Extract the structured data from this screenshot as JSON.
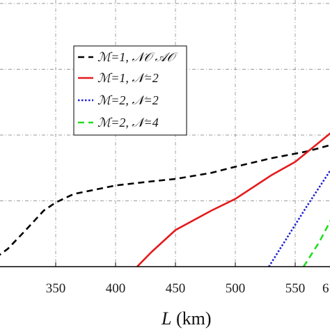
{
  "chart_data": {
    "type": "line",
    "xlabel_var": "L",
    "xlabel_unit": "(km)",
    "ylabel": "",
    "xlim": [
      300,
      600
    ],
    "x_ticks": [
      350,
      400,
      450,
      500,
      550
    ],
    "x_tick_partial": "6",
    "grid": true,
    "legend_position": "upper-left",
    "series": [
      {
        "name": "ℳ=1, 𝒩𝒪 𝒜𝒪",
        "color": "#000000",
        "style": "dashed",
        "points": [
          [
            300,
            0.37
          ],
          [
            310,
            0.73
          ],
          [
            325,
            1.5
          ],
          [
            340,
            2.3
          ],
          [
            350,
            2.63
          ],
          [
            365,
            2.98
          ],
          [
            400,
            3.33
          ],
          [
            430,
            3.5
          ],
          [
            450,
            3.6
          ],
          [
            480,
            3.85
          ],
          [
            500,
            4.1
          ],
          [
            530,
            4.45
          ],
          [
            560,
            4.73
          ],
          [
            590,
            5.13
          ],
          [
            600,
            5.25
          ]
        ]
      },
      {
        "name": "ℳ=1, 𝒩=2",
        "color": "#e41a1c",
        "style": "solid",
        "points": [
          [
            418,
            0.0
          ],
          [
            430,
            0.6
          ],
          [
            450,
            1.5
          ],
          [
            480,
            2.3
          ],
          [
            500,
            2.78
          ],
          [
            530,
            3.75
          ],
          [
            550,
            4.3
          ],
          [
            570,
            5.1
          ],
          [
            600,
            6.3
          ]
        ]
      },
      {
        "name": "ℳ=2, 𝒩=2",
        "color": "#1f1fd0",
        "style": "dotted",
        "points": [
          [
            528,
            0.0
          ],
          [
            560,
            2.5
          ],
          [
            580,
            4.0
          ],
          [
            600,
            4.8
          ]
        ]
      },
      {
        "name": "ℳ=2, 𝒩=4",
        "color": "#22dd22",
        "style": "dashed",
        "points": [
          [
            557,
            0.0
          ],
          [
            570,
            1.0
          ],
          [
            585,
            2.4
          ],
          [
            600,
            3.6
          ]
        ]
      }
    ]
  }
}
